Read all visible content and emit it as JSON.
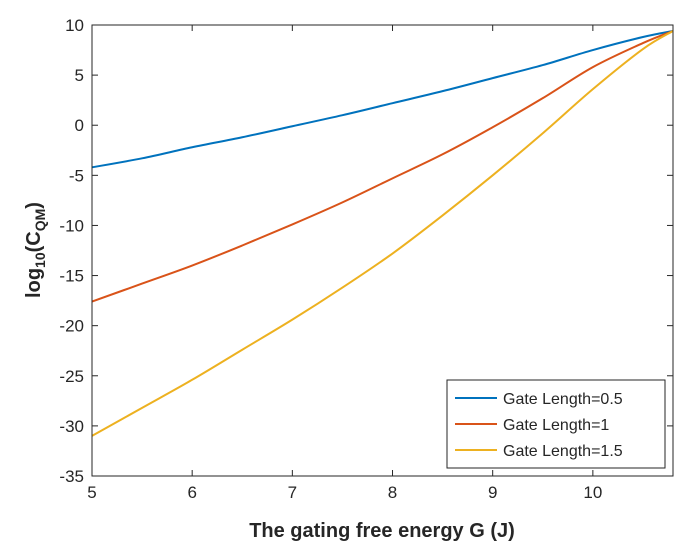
{
  "chart_data": {
    "type": "line",
    "xlabel": "The gating free energy G (J)",
    "ylabel": {
      "prefix": "log",
      "sub1": "10",
      "mid": "(C",
      "sub2": "QM",
      "suffix": ")"
    },
    "xlim": [
      5,
      10.8
    ],
    "ylim": [
      -35,
      10
    ],
    "xticks": [
      5,
      6,
      7,
      8,
      9,
      10
    ],
    "yticks": [
      -35,
      -30,
      -25,
      -20,
      -15,
      -10,
      -5,
      0,
      5,
      10
    ],
    "grid": false,
    "legend_position": "bottom-right",
    "series": [
      {
        "name": "Gate Length=0.5",
        "color": "#0072BD",
        "x": [
          5,
          5.5,
          6,
          6.5,
          7,
          7.5,
          8,
          8.5,
          9,
          9.5,
          10,
          10.5,
          10.8
        ],
        "y": [
          -4.2,
          -3.3,
          -2.2,
          -1.2,
          -0.1,
          1.0,
          2.2,
          3.4,
          4.7,
          6.0,
          7.5,
          8.8,
          9.4
        ]
      },
      {
        "name": "Gate Length=1",
        "color": "#D95319",
        "x": [
          5,
          5.5,
          6,
          6.5,
          7,
          7.5,
          8,
          8.5,
          9,
          9.5,
          10,
          10.5,
          10.8
        ],
        "y": [
          -17.6,
          -15.8,
          -14.0,
          -12.0,
          -9.9,
          -7.7,
          -5.3,
          -2.9,
          -0.2,
          2.7,
          5.8,
          8.2,
          9.4
        ]
      },
      {
        "name": "Gate Length=1.5",
        "color": "#EDB120",
        "x": [
          5,
          5.5,
          6,
          6.5,
          7,
          7.5,
          8,
          8.5,
          9,
          9.5,
          10,
          10.5,
          10.8
        ],
        "y": [
          -31.0,
          -28.2,
          -25.4,
          -22.4,
          -19.4,
          -16.2,
          -12.8,
          -9.0,
          -5.0,
          -0.8,
          3.6,
          7.6,
          9.4
        ]
      }
    ]
  }
}
